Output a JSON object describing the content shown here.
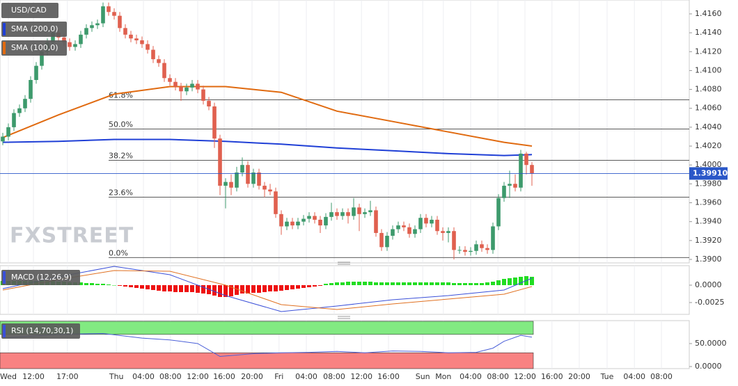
{
  "chart_data": [
    {
      "type": "candlestick",
      "title": "USD/CAD",
      "watermark": "FXSTREET",
      "xlim": [
        -0.5,
        123.25
      ],
      "ylim": [
        1.38963,
        1.41747
      ],
      "grid": "x",
      "up_color": "#3d9a6c",
      "down_color": "#e0604f",
      "xticks": [
        {
          "value": 1,
          "label": "Wed"
        },
        {
          "value": 5.5,
          "label": "12:00"
        },
        {
          "value": 11.6,
          "label": "17:00"
        },
        {
          "value": 20.4,
          "label": "Thu"
        },
        {
          "value": 25.25,
          "label": "04:00"
        },
        {
          "value": 30.1,
          "label": "08:00"
        },
        {
          "value": 35,
          "label": "12:00"
        },
        {
          "value": 39.75,
          "label": "16:00"
        },
        {
          "value": 44.75,
          "label": "20:00"
        },
        {
          "value": 49.6,
          "label": "Fri"
        },
        {
          "value": 54.5,
          "label": "04:00"
        },
        {
          "value": 59.5,
          "label": "08:00"
        },
        {
          "value": 64.4,
          "label": "12:00"
        },
        {
          "value": 69.25,
          "label": "16:00"
        },
        {
          "value": 75.4,
          "label": "Sun"
        },
        {
          "value": 79.1,
          "label": "Mon"
        },
        {
          "value": 84,
          "label": "04:00"
        },
        {
          "value": 88.9,
          "label": "08:00"
        },
        {
          "value": 93.75,
          "label": "12:00"
        },
        {
          "value": 98.6,
          "label": "16:00"
        },
        {
          "value": 103.5,
          "label": "20:00"
        },
        {
          "value": 108.5,
          "label": "Tue"
        },
        {
          "value": 113.4,
          "label": "04:00"
        },
        {
          "value": 118.25,
          "label": "08:00"
        }
      ],
      "yticks": [
        {
          "value": 1.416,
          "label": "1.4160"
        },
        {
          "value": 1.414,
          "label": "1.4140"
        },
        {
          "value": 1.412,
          "label": "1.4120"
        },
        {
          "value": 1.41,
          "label": "1.4100"
        },
        {
          "value": 1.408,
          "label": "1.4080"
        },
        {
          "value": 1.406,
          "label": "1.4060"
        },
        {
          "value": 1.404,
          "label": "1.4040"
        },
        {
          "value": 1.402,
          "label": "1.4020"
        },
        {
          "value": 1.4,
          "label": "1.4000"
        },
        {
          "value": 1.398,
          "label": "1.3980"
        },
        {
          "value": 1.396,
          "label": "1.3960"
        },
        {
          "value": 1.394,
          "label": "1.3940"
        },
        {
          "value": 1.392,
          "label": "1.3920"
        },
        {
          "value": 1.39,
          "label": "1.3900"
        }
      ],
      "open": [
        1.4025,
        1.403,
        1.404,
        1.4055,
        1.406,
        1.407,
        1.409,
        1.4105,
        1.412,
        1.413,
        1.414,
        1.4135,
        1.413,
        1.4125,
        1.4128,
        1.4138,
        1.4145,
        1.4148,
        1.415,
        1.4168,
        1.4162,
        1.4158,
        1.4145,
        1.4138,
        1.4134,
        1.4132,
        1.4128,
        1.4122,
        1.4112,
        1.4108,
        1.4092,
        1.4088,
        1.4083,
        1.4078,
        1.4082,
        1.4086,
        1.408,
        1.4068,
        1.4062,
        1.4028,
        1.3978,
        1.3982,
        1.3976,
        1.3992,
        1.4,
        1.398,
        1.3992,
        1.3978,
        1.3974,
        1.3972,
        1.3948,
        1.3935,
        1.394,
        1.3936,
        1.394,
        1.3943,
        1.3946,
        1.3942,
        1.3936,
        1.3945,
        1.395,
        1.3946,
        1.395,
        1.3946,
        1.3955,
        1.3948,
        1.395,
        1.3952,
        1.3928,
        1.3913,
        1.3925,
        1.3932,
        1.3936,
        1.3934,
        1.3927,
        1.3932,
        1.3944,
        1.3938,
        1.3942,
        1.393,
        1.3928,
        1.393,
        1.391,
        1.391,
        1.3908,
        1.3909,
        1.3916,
        1.3912,
        1.391,
        1.3935,
        1.3965,
        1.3978,
        1.398,
        1.3976,
        1.4012,
        1.4
      ],
      "high": [
        1.4034,
        1.4044,
        1.4059,
        1.4064,
        1.4074,
        1.4094,
        1.4109,
        1.4124,
        1.4134,
        1.4144,
        1.4144,
        1.4139,
        1.4134,
        1.4132,
        1.4142,
        1.4149,
        1.4152,
        1.4154,
        1.4172,
        1.4172,
        1.4166,
        1.4162,
        1.4149,
        1.4142,
        1.4138,
        1.4136,
        1.4132,
        1.4126,
        1.4116,
        1.4112,
        1.4096,
        1.4092,
        1.4087,
        1.4086,
        1.409,
        1.409,
        1.4084,
        1.4072,
        1.4066,
        1.4032,
        1.3986,
        1.399,
        1.3998,
        1.4008,
        1.4004,
        1.3996,
        1.3996,
        1.3982,
        1.398,
        1.3976,
        1.3952,
        1.3944,
        1.3944,
        1.3944,
        1.3947,
        1.395,
        1.395,
        1.3946,
        1.3949,
        1.396,
        1.3954,
        1.3954,
        1.3954,
        1.3965,
        1.3959,
        1.3954,
        1.3962,
        1.3956,
        1.3932,
        1.3929,
        1.3936,
        1.394,
        1.394,
        1.3938,
        1.3936,
        1.3948,
        1.3948,
        1.3946,
        1.3946,
        1.3934,
        1.3934,
        1.3934,
        1.3914,
        1.3914,
        1.3913,
        1.392,
        1.392,
        1.3916,
        1.3939,
        1.3969,
        1.3982,
        1.3994,
        1.399,
        1.4016,
        1.4014,
        1.4003
      ],
      "low": [
        1.4021,
        1.4026,
        1.4036,
        1.4051,
        1.4056,
        1.4066,
        1.4086,
        1.4101,
        1.4116,
        1.4126,
        1.4131,
        1.4126,
        1.4121,
        1.4121,
        1.4124,
        1.4134,
        1.4141,
        1.4144,
        1.4146,
        1.4158,
        1.4154,
        1.4141,
        1.4134,
        1.413,
        1.4128,
        1.4124,
        1.4118,
        1.4108,
        1.4104,
        1.4088,
        1.4084,
        1.4079,
        1.4068,
        1.4074,
        1.4078,
        1.4076,
        1.4064,
        1.4058,
        1.4018,
        1.3968,
        1.3954,
        1.3968,
        1.3972,
        1.3988,
        1.3976,
        1.3976,
        1.3974,
        1.3966,
        1.3968,
        1.3944,
        1.3926,
        1.3931,
        1.3932,
        1.3932,
        1.3936,
        1.3939,
        1.3938,
        1.3928,
        1.3932,
        1.3941,
        1.3942,
        1.3942,
        1.3938,
        1.3942,
        1.393,
        1.3944,
        1.3946,
        1.3924,
        1.3909,
        1.3909,
        1.3921,
        1.3928,
        1.393,
        1.3923,
        1.3923,
        1.3928,
        1.3934,
        1.3934,
        1.3926,
        1.392,
        1.3918,
        1.39,
        1.3906,
        1.3904,
        1.3904,
        1.3905,
        1.3908,
        1.3906,
        1.3906,
        1.3931,
        1.3961,
        1.3965,
        1.3972,
        1.3972,
        1.399,
        1.3978
      ],
      "close": [
        1.403,
        1.404,
        1.4055,
        1.406,
        1.407,
        1.409,
        1.4105,
        1.412,
        1.413,
        1.414,
        1.4135,
        1.413,
        1.4125,
        1.4128,
        1.4138,
        1.4145,
        1.4148,
        1.415,
        1.4168,
        1.4162,
        1.4158,
        1.4145,
        1.4138,
        1.4134,
        1.4132,
        1.4128,
        1.4122,
        1.4112,
        1.4108,
        1.4092,
        1.4088,
        1.4083,
        1.4078,
        1.4082,
        1.4086,
        1.408,
        1.4068,
        1.4062,
        1.4028,
        1.3978,
        1.3982,
        1.3976,
        1.3992,
        1.4,
        1.398,
        1.3992,
        1.3978,
        1.3974,
        1.3972,
        1.3948,
        1.3935,
        1.394,
        1.3936,
        1.394,
        1.3943,
        1.3946,
        1.3942,
        1.3936,
        1.3945,
        1.395,
        1.3946,
        1.395,
        1.3946,
        1.3955,
        1.3948,
        1.395,
        1.3952,
        1.3928,
        1.3913,
        1.3925,
        1.3932,
        1.3936,
        1.3934,
        1.3927,
        1.3932,
        1.3944,
        1.3938,
        1.3942,
        1.393,
        1.3928,
        1.393,
        1.391,
        1.391,
        1.3908,
        1.3909,
        1.3916,
        1.3912,
        1.391,
        1.3935,
        1.3965,
        1.3978,
        1.398,
        1.3976,
        1.4012,
        1.4,
        1.3991
      ],
      "series": [
        {
          "name": "SMA (200,0)",
          "color": "#1f3fd6",
          "x": [
            0,
            10,
            20,
            30,
            40,
            50,
            60,
            70,
            80,
            90,
            95
          ],
          "values": [
            1.4024,
            1.4025,
            1.4027,
            1.4027,
            1.4025,
            1.4022,
            1.4018,
            1.4015,
            1.4012,
            1.401,
            1.4011
          ]
        },
        {
          "name": "SMA (100,0)",
          "color": "#e06a10",
          "x": [
            0,
            10,
            20,
            30,
            40,
            50,
            60,
            70,
            80,
            90,
            95
          ],
          "values": [
            1.4029,
            1.4053,
            1.4075,
            1.4083,
            1.4083,
            1.4077,
            1.4057,
            1.4046,
            1.4035,
            1.4024,
            1.402
          ]
        }
      ],
      "fib_levels": [
        {
          "label": "61.8%",
          "value": 1.4069
        },
        {
          "label": "50.0%",
          "value": 1.4038
        },
        {
          "label": "38.2%",
          "value": 1.4005
        },
        {
          "label": "23.6%",
          "value": 1.3966
        },
        {
          "label": "0.0%",
          "value": 1.3902
        }
      ],
      "current_price": {
        "value": 1.3991,
        "label": "1.39910",
        "color": "#2a57c8"
      }
    },
    {
      "type": "macd",
      "title": "MACD (12,26,9)",
      "ylim": [
        -0.0042,
        0.0028
      ],
      "yticks": [
        {
          "value": 0,
          "label": "0.0000"
        },
        {
          "value": -0.0025,
          "label": "-0.0025"
        }
      ],
      "up_color": "#22dd22",
      "down_color": "#ee1111",
      "histogram": [
        0.0006,
        0.0006,
        0.0006,
        0.0006,
        0.0006,
        0.0006,
        0.0006,
        0.0006,
        0.0006,
        0.0006,
        0.0005,
        0.0005,
        0.0004,
        0.0004,
        0.0004,
        0.0003,
        0.0003,
        0.0002,
        0.0002,
        0.0001,
        0.0,
        -0.0001,
        -0.0002,
        -0.0003,
        -0.0004,
        -0.0005,
        -0.0006,
        -0.0007,
        -0.0008,
        -0.0009,
        -0.0009,
        -0.001,
        -0.001,
        -0.001,
        -0.001,
        -0.0011,
        -0.0012,
        -0.0013,
        -0.0015,
        -0.0017,
        -0.0017,
        -0.0016,
        -0.0014,
        -0.0012,
        -0.0012,
        -0.0011,
        -0.0011,
        -0.001,
        -0.0009,
        -0.0009,
        -0.0008,
        -0.0007,
        -0.0006,
        -0.0005,
        -0.0004,
        -0.0003,
        -0.0002,
        -0.0001,
        0.0002,
        0.0003,
        0.0004,
        0.0004,
        0.0005,
        0.0005,
        0.0005,
        0.0005,
        0.0005,
        0.0004,
        0.0004,
        0.0004,
        0.0004,
        0.0004,
        0.0004,
        0.0004,
        0.0004,
        0.0004,
        0.0004,
        0.0004,
        0.0004,
        0.0004,
        0.0004,
        0.0003,
        0.0003,
        0.0003,
        0.0003,
        0.0003,
        0.0003,
        0.0004,
        0.0005,
        0.0007,
        0.0009,
        0.001,
        0.0011,
        0.0012,
        0.0013,
        0.0012
      ],
      "series": [
        {
          "color": "#3a4fd8",
          "x": [
            0,
            10,
            20,
            30,
            40,
            50,
            60,
            70,
            80,
            90,
            95
          ],
          "values": [
            -0.0005,
            0.0012,
            0.0027,
            0.0015,
            -0.0015,
            -0.0038,
            -0.003,
            -0.0021,
            -0.0015,
            -0.0007,
            0.001
          ]
        },
        {
          "color": "#e07020",
          "x": [
            0,
            10,
            20,
            30,
            40,
            50,
            60,
            70,
            80,
            90,
            95
          ],
          "values": [
            -0.0007,
            0.0008,
            0.0021,
            0.002,
            0.0,
            -0.0028,
            -0.0035,
            -0.0027,
            -0.002,
            -0.0013,
            -0.0002
          ]
        }
      ]
    },
    {
      "type": "rsi",
      "title": "RSI (14,70,30,1)",
      "ylim": [
        -4.5,
        100
      ],
      "yticks": [
        {
          "value": 50,
          "label": "50.0000"
        },
        {
          "value": 0,
          "label": "0.0000"
        }
      ],
      "upper": 70,
      "lower": 30,
      "upper_color": "#82ea82",
      "lower_color": "#f88282",
      "series": [
        {
          "color": "#4a5fd8",
          "x": [
            0,
            10,
            18,
            25,
            30,
            35,
            39,
            45,
            50,
            55,
            60,
            65,
            70,
            75,
            80,
            85,
            88,
            90,
            93,
            95
          ],
          "values": [
            62,
            70,
            72,
            62,
            58,
            50,
            22,
            28,
            30,
            31,
            33,
            30,
            34,
            33,
            30,
            31,
            40,
            55,
            68,
            64
          ]
        }
      ]
    }
  ]
}
